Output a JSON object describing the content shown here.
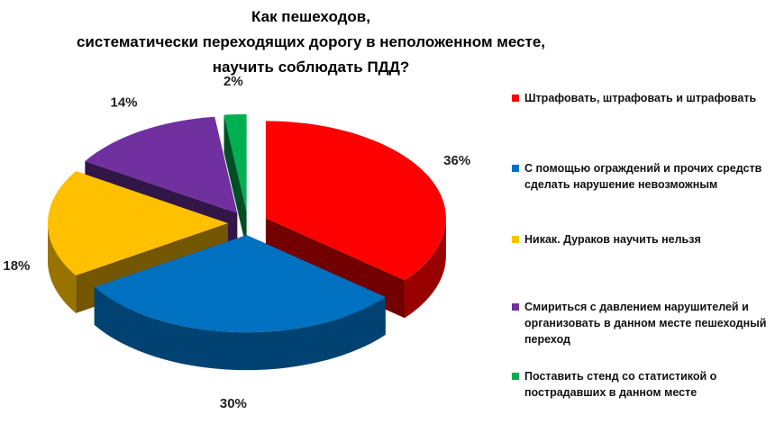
{
  "chart_data": {
    "type": "pie3d",
    "title": [
      "Как пешеходов,",
      "систематически переходящих дорогу в неположенном месте,",
      "научить соблюдать ПДД?"
    ],
    "categories": [
      "Штрафовать, штрафовать и штрафовать",
      "С помощью ограждений и прочих средств сделать нарушение невозможным",
      "Никак. Дураков научить нельзя",
      "Смириться с давлением нарушителей и организовать в данном месте пешеходный переход",
      "Поставить стенд со статистикой о пострадавших в данном месте"
    ],
    "values": [
      36,
      30,
      18,
      14,
      2
    ],
    "value_labels": [
      "36%",
      "30%",
      "18%",
      "14%",
      "2%"
    ],
    "colors": [
      "#ff0000",
      "#0070c0",
      "#ffc000",
      "#7030a0",
      "#00b050"
    ],
    "legend": "right"
  }
}
